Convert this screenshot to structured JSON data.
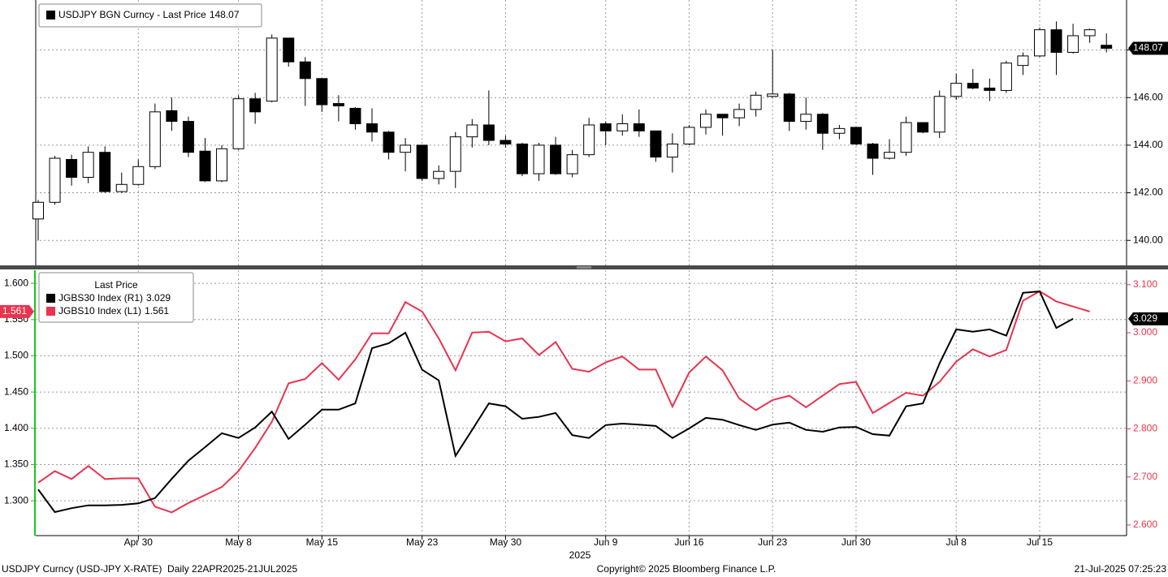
{
  "chart_data": [
    {
      "type": "candlestick",
      "legend": "USDJPY BGN Curncy - Last Price",
      "open": [
        140.9,
        141.6,
        143.4,
        142.65,
        143.7,
        142.05,
        142.35,
        143.1,
        145.45,
        145.0,
        143.75,
        142.5,
        143.85,
        145.95,
        145.85,
        148.5,
        147.5,
        146.8,
        145.75,
        145.55,
        144.9,
        144.55,
        143.7,
        144.0,
        142.6,
        142.9,
        144.35,
        144.85,
        144.2,
        144.05,
        142.8,
        144.0,
        142.8,
        143.6,
        144.9,
        144.6,
        144.9,
        144.6,
        143.5,
        144.05,
        144.75,
        145.3,
        145.15,
        145.5,
        146.05,
        146.15,
        145.0,
        145.3,
        144.5,
        144.75,
        144.05,
        143.45,
        143.7,
        144.95,
        144.55,
        146.05,
        146.6,
        146.4,
        146.3,
        147.35,
        147.75,
        148.85,
        147.9,
        148.6,
        148.2
      ],
      "high": [
        141.7,
        143.55,
        143.6,
        143.95,
        143.95,
        142.85,
        143.4,
        145.75,
        146.0,
        145.2,
        144.3,
        144.0,
        146.1,
        146.2,
        148.65,
        148.5,
        147.7,
        146.8,
        146.1,
        145.6,
        145.55,
        144.6,
        144.3,
        144.0,
        143.15,
        144.55,
        145.1,
        146.3,
        144.4,
        144.1,
        144.1,
        144.35,
        143.8,
        145.15,
        145.0,
        145.3,
        145.5,
        144.6,
        144.5,
        144.85,
        145.5,
        145.3,
        145.75,
        146.25,
        148.0,
        146.2,
        146.0,
        145.35,
        144.85,
        144.75,
        144.1,
        144.25,
        145.2,
        144.95,
        146.3,
        147.0,
        147.2,
        146.8,
        147.55,
        147.9,
        148.95,
        149.2,
        149.1,
        148.9,
        148.7
      ],
      "low": [
        140.0,
        141.5,
        142.3,
        142.4,
        142.0,
        142.0,
        142.3,
        143.0,
        144.6,
        143.5,
        142.45,
        142.45,
        143.8,
        144.9,
        145.8,
        147.3,
        145.65,
        145.4,
        145.0,
        144.65,
        144.15,
        143.4,
        142.9,
        142.5,
        142.35,
        142.2,
        143.9,
        144.0,
        143.9,
        142.7,
        142.5,
        142.75,
        142.65,
        143.5,
        144.0,
        144.4,
        144.35,
        143.3,
        142.85,
        144.0,
        144.45,
        144.4,
        144.8,
        145.2,
        146.0,
        144.6,
        144.65,
        143.8,
        144.25,
        144.0,
        142.75,
        143.4,
        143.55,
        144.5,
        144.3,
        145.9,
        146.35,
        145.85,
        146.2,
        146.95,
        147.7,
        146.95,
        147.85,
        148.3,
        147.9
      ],
      "close": [
        141.6,
        143.45,
        142.65,
        143.7,
        142.05,
        142.35,
        143.1,
        145.4,
        145.0,
        143.7,
        142.5,
        143.85,
        145.95,
        145.4,
        148.5,
        147.5,
        146.8,
        145.7,
        145.65,
        144.9,
        144.55,
        143.7,
        144.0,
        142.6,
        142.9,
        144.35,
        144.85,
        144.2,
        144.05,
        142.8,
        144.0,
        142.8,
        143.6,
        144.85,
        144.6,
        144.9,
        144.6,
        143.5,
        144.05,
        144.75,
        145.3,
        145.15,
        145.5,
        146.1,
        146.15,
        145.0,
        145.3,
        144.5,
        144.7,
        144.05,
        143.45,
        143.7,
        144.95,
        144.55,
        146.05,
        146.6,
        146.4,
        146.3,
        147.45,
        147.75,
        148.85,
        147.9,
        148.6,
        148.85,
        148.07
      ],
      "up_color": "#ffffff",
      "down_color": "#000000",
      "ylim": [
        138.95,
        150.1
      ],
      "yticks": [
        {
          "value": 140,
          "label": "140.00"
        },
        {
          "value": 142,
          "label": "142.00"
        },
        {
          "value": 144,
          "label": "144.00"
        },
        {
          "value": 146,
          "label": "146.00"
        },
        {
          "value": 148,
          "label": "148.00"
        }
      ],
      "grid": true
    },
    {
      "type": "line",
      "legend_title": "Last Price",
      "categories": [
        null,
        null,
        null,
        null,
        null,
        null,
        "Apr 30",
        null,
        null,
        null,
        null,
        null,
        "May 8",
        null,
        null,
        null,
        null,
        "May 15",
        null,
        null,
        null,
        null,
        null,
        "May 23",
        null,
        null,
        null,
        null,
        "May 30",
        null,
        null,
        null,
        null,
        null,
        "Jun 9",
        null,
        null,
        null,
        null,
        "Jun 16",
        null,
        null,
        null,
        null,
        "Jun 23",
        null,
        null,
        null,
        null,
        "Jun 30",
        null,
        null,
        null,
        null,
        null,
        "Jul 8",
        null,
        null,
        null,
        null,
        "Jul 15",
        null,
        null,
        null,
        null
      ],
      "year_label": "2025",
      "series": [
        {
          "name": "JGBS30 Index (R1)",
          "color": "#000000",
          "axis": "y2",
          "values": [
            2.674,
            2.627,
            2.635,
            2.641,
            2.641,
            2.642,
            2.645,
            2.656,
            2.696,
            2.734,
            2.762,
            2.791,
            2.781,
            2.803,
            2.836,
            2.779,
            2.809,
            2.84,
            2.84,
            2.853,
            2.968,
            2.978,
            3.0,
            2.923,
            2.901,
            2.744,
            2.798,
            2.853,
            2.847,
            2.821,
            2.825,
            2.833,
            2.787,
            2.781,
            2.808,
            2.811,
            2.809,
            2.806,
            2.781,
            2.801,
            2.823,
            2.819,
            2.808,
            2.798,
            2.809,
            2.813,
            2.798,
            2.794,
            2.803,
            2.804,
            2.789,
            2.786,
            2.847,
            2.853,
            2.936,
            3.007,
            3.002,
            3.007,
            2.994,
            3.083,
            3.086,
            3.01,
            3.029,
            null,
            null
          ]
        },
        {
          "name": "JGBS10 Index (L1)",
          "color": "#e8344e",
          "values": [
            1.325,
            1.341,
            1.33,
            1.348,
            1.33,
            1.331,
            1.331,
            1.292,
            1.284,
            1.297,
            1.308,
            1.319,
            1.341,
            1.373,
            1.409,
            1.462,
            1.468,
            1.49,
            1.467,
            1.495,
            1.531,
            1.531,
            1.574,
            1.561,
            1.524,
            1.48,
            1.532,
            1.533,
            1.52,
            1.524,
            1.501,
            1.519,
            1.482,
            1.478,
            1.491,
            1.499,
            1.481,
            1.481,
            1.43,
            1.477,
            1.499,
            1.48,
            1.441,
            1.425,
            1.439,
            1.445,
            1.429,
            1.445,
            1.461,
            1.464,
            1.421,
            1.435,
            1.449,
            1.445,
            1.464,
            1.492,
            1.509,
            1.499,
            1.508,
            1.576,
            1.589,
            1.575,
            1.568,
            1.561,
            null
          ]
        }
      ],
      "ylim": [
        1.252,
        1.618
      ],
      "yticks": [
        {
          "value": 1.3,
          "label": "1.300"
        },
        {
          "value": 1.35,
          "label": "1.350"
        },
        {
          "value": 1.4,
          "label": "1.400"
        },
        {
          "value": 1.45,
          "label": "1.450"
        },
        {
          "value": 1.5,
          "label": "1.500"
        },
        {
          "value": 1.55,
          "label": "1.550"
        },
        {
          "value": 1.6,
          "label": "1.600"
        }
      ],
      "y2lim": [
        2.578,
        3.13
      ],
      "y2ticks": [
        {
          "value": 2.6,
          "label": "2.600"
        },
        {
          "value": 2.7,
          "label": "2.700"
        },
        {
          "value": 2.8,
          "label": "2.800"
        },
        {
          "value": 2.9,
          "label": "2.900"
        },
        {
          "value": 3.0,
          "label": "3.000"
        },
        {
          "value": 3.1,
          "label": "3.100"
        }
      ],
      "grid": true
    }
  ],
  "footer": {
    "left": "USDJPY Curncy (USD-JPY X-RATE)  Daily 22APR2025-21JUL2025",
    "center": "Copyright© 2025 Bloomberg Finance L.P.",
    "right": "21-Jul-2025 07:25:23"
  }
}
